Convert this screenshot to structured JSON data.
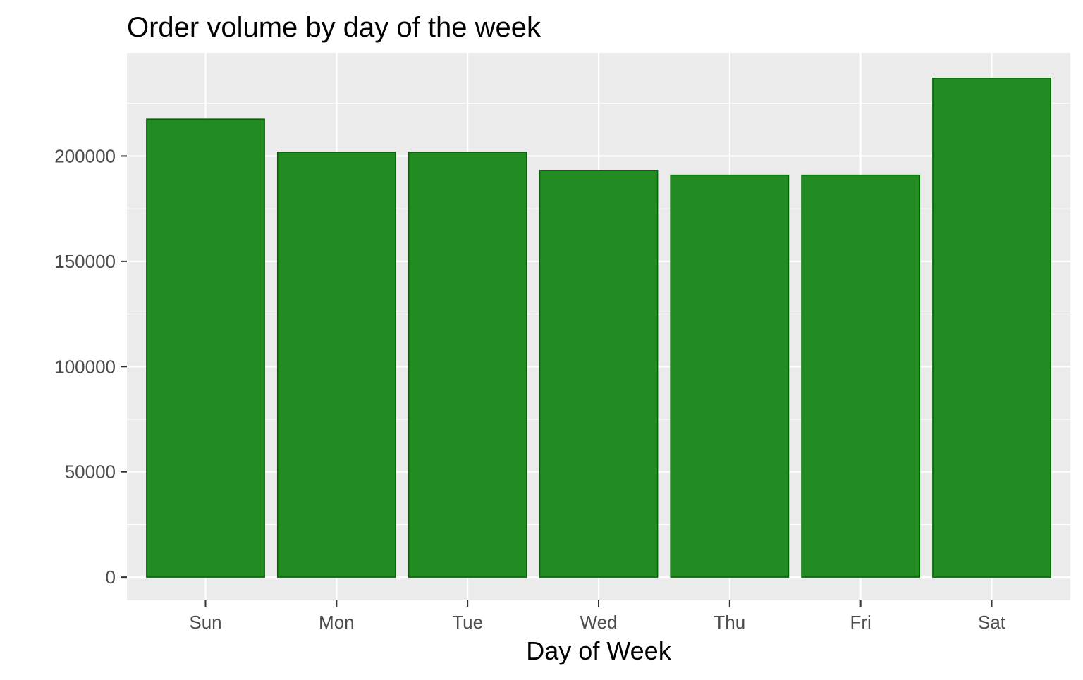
{
  "chart_data": {
    "type": "bar",
    "title": "Order volume by day of the week",
    "xlabel": "Day of Week",
    "ylabel": "",
    "categories": [
      "Sun",
      "Mon",
      "Tue",
      "Wed",
      "Thu",
      "Fri",
      "Sat"
    ],
    "values": [
      217500,
      201800,
      201800,
      193200,
      190900,
      190900,
      237000
    ],
    "ylim": [
      -11000,
      249000
    ],
    "yticks": [
      0,
      50000,
      100000,
      150000,
      200000
    ],
    "ytick_labels": [
      "0",
      "50000",
      "100000",
      "150000",
      "200000"
    ],
    "grid": true,
    "legend": "none",
    "colors": {
      "bar_fill": "#228B22",
      "bar_stroke": "#006400",
      "panel_background": "#EBEBEB",
      "grid_line": "#FFFFFF",
      "tick_label": "#4D4D4D",
      "axis_title": "#000000"
    }
  }
}
